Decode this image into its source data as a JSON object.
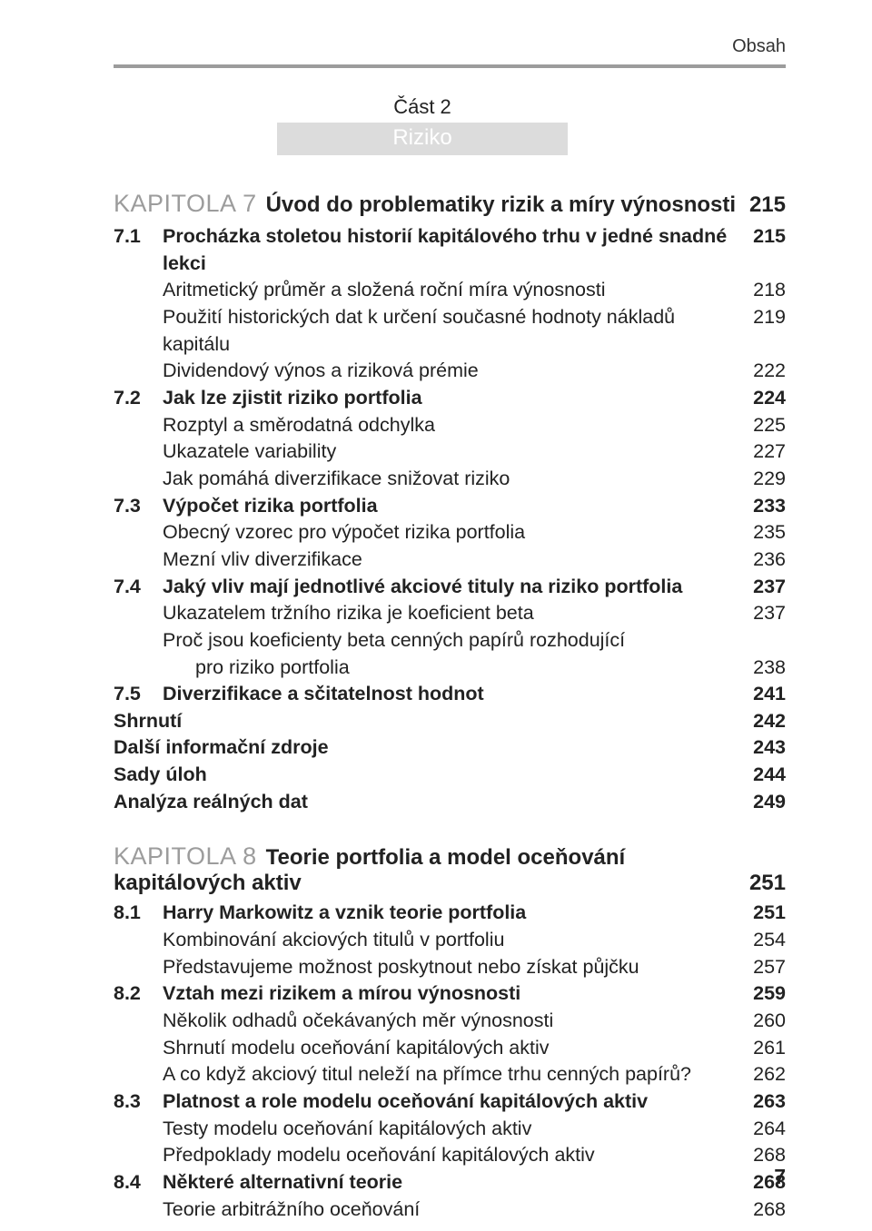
{
  "header": {
    "title": "Obsah"
  },
  "part": {
    "label": "Část 2",
    "title": "Riziko"
  },
  "chapter7": {
    "label": "KAPITOLA 7",
    "title": "Úvod do problematiky rizik a míry výnosnosti",
    "page": "215",
    "rows": [
      {
        "n": "7.1",
        "t": "Procházka stoletou historií kapitálového trhu v jedné snadné lekci",
        "p": "215",
        "b": true,
        "lvl": 0
      },
      {
        "n": "",
        "t": "Aritmetický průměr a složená roční míra výnosnosti",
        "p": "218",
        "b": false,
        "lvl": 1
      },
      {
        "n": "",
        "t": "Použití historických dat k určení současné hodnoty nákladů kapitálu",
        "p": "219",
        "b": false,
        "lvl": 1
      },
      {
        "n": "",
        "t": "Dividendový výnos a riziková prémie",
        "p": "222",
        "b": false,
        "lvl": 1
      },
      {
        "n": "7.2",
        "t": "Jak lze zjistit riziko portfolia",
        "p": "224",
        "b": true,
        "lvl": 0
      },
      {
        "n": "",
        "t": "Rozptyl a směrodatná odchylka",
        "p": "225",
        "b": false,
        "lvl": 1
      },
      {
        "n": "",
        "t": "Ukazatele variability",
        "p": "227",
        "b": false,
        "lvl": 1
      },
      {
        "n": "",
        "t": "Jak pomáhá diverzifikace snižovat riziko",
        "p": "229",
        "b": false,
        "lvl": 1
      },
      {
        "n": "7.3",
        "t": "Výpočet rizika portfolia",
        "p": "233",
        "b": true,
        "lvl": 0
      },
      {
        "n": "",
        "t": "Obecný vzorec pro výpočet rizika portfolia",
        "p": "235",
        "b": false,
        "lvl": 1
      },
      {
        "n": "",
        "t": "Mezní vliv diverzifikace",
        "p": "236",
        "b": false,
        "lvl": 1
      },
      {
        "n": "7.4",
        "t": "Jaký vliv mají jednotlivé akciové tituly na riziko portfolia",
        "p": "237",
        "b": true,
        "lvl": 0
      },
      {
        "n": "",
        "t": "Ukazatelem tržního rizika je koeficient beta",
        "p": "237",
        "b": false,
        "lvl": 1
      },
      {
        "n": "",
        "t": "Proč jsou koeficienty beta cenných papírů rozhodující",
        "p": "",
        "b": false,
        "lvl": 1
      },
      {
        "n": "",
        "t": "pro riziko portfolia",
        "p": "238",
        "b": false,
        "lvl": 2
      },
      {
        "n": "7.5",
        "t": "Diverzifikace a sčitatelnost hodnot",
        "p": "241",
        "b": true,
        "lvl": 0
      },
      {
        "n": "",
        "t": "Shrnutí",
        "p": "242",
        "b": true,
        "lvl": -1
      },
      {
        "n": "",
        "t": "Další informační zdroje",
        "p": "243",
        "b": true,
        "lvl": -1
      },
      {
        "n": "",
        "t": "Sady úloh",
        "p": "244",
        "b": true,
        "lvl": -1
      },
      {
        "n": "",
        "t": "Analýza reálných dat",
        "p": "249",
        "b": true,
        "lvl": -1
      }
    ]
  },
  "chapter8": {
    "label": "KAPITOLA 8",
    "title1": "Teorie portfolia a model oceňování",
    "title2": "kapitálových aktiv",
    "page": "251",
    "rows": [
      {
        "n": "8.1",
        "t": "Harry Markowitz a vznik teorie portfolia",
        "p": "251",
        "b": true,
        "lvl": 0
      },
      {
        "n": "",
        "t": "Kombinování akciových titulů v portfoliu",
        "p": "254",
        "b": false,
        "lvl": 1
      },
      {
        "n": "",
        "t": "Představujeme možnost poskytnout nebo získat půjčku",
        "p": "257",
        "b": false,
        "lvl": 1
      },
      {
        "n": "8.2",
        "t": "Vztah mezi rizikem a mírou výnosnosti",
        "p": "259",
        "b": true,
        "lvl": 0
      },
      {
        "n": "",
        "t": "Několik odhadů očekávaných měr výnosnosti",
        "p": "260",
        "b": false,
        "lvl": 1
      },
      {
        "n": "",
        "t": "Shrnutí modelu oceňování kapitálových aktiv",
        "p": "261",
        "b": false,
        "lvl": 1
      },
      {
        "n": "",
        "t": "A co když akciový titul neleží na přímce trhu cenných papírů?",
        "p": "262",
        "b": false,
        "lvl": 1
      },
      {
        "n": "8.3",
        "t": "Platnost a role modelu oceňování kapitálových aktiv",
        "p": "263",
        "b": true,
        "lvl": 0
      },
      {
        "n": "",
        "t": "Testy modelu oceňování kapitálových aktiv",
        "p": "264",
        "b": false,
        "lvl": 1
      },
      {
        "n": "",
        "t": "Předpoklady modelu oceňování kapitálových aktiv",
        "p": "268",
        "b": false,
        "lvl": 1
      },
      {
        "n": "8.4",
        "t": "Některé alternativní teorie",
        "p": "268",
        "b": true,
        "lvl": 0
      },
      {
        "n": "",
        "t": "Teorie arbitrážního oceňování",
        "p": "268",
        "b": false,
        "lvl": 1
      }
    ]
  },
  "footer": {
    "page": "7"
  },
  "colors": {
    "rule": "#9c9c9c",
    "part_bg": "#dcdcdc",
    "part_fg": "#ffffff",
    "chapter_label": "#9c9c9c",
    "text": "#222222"
  }
}
